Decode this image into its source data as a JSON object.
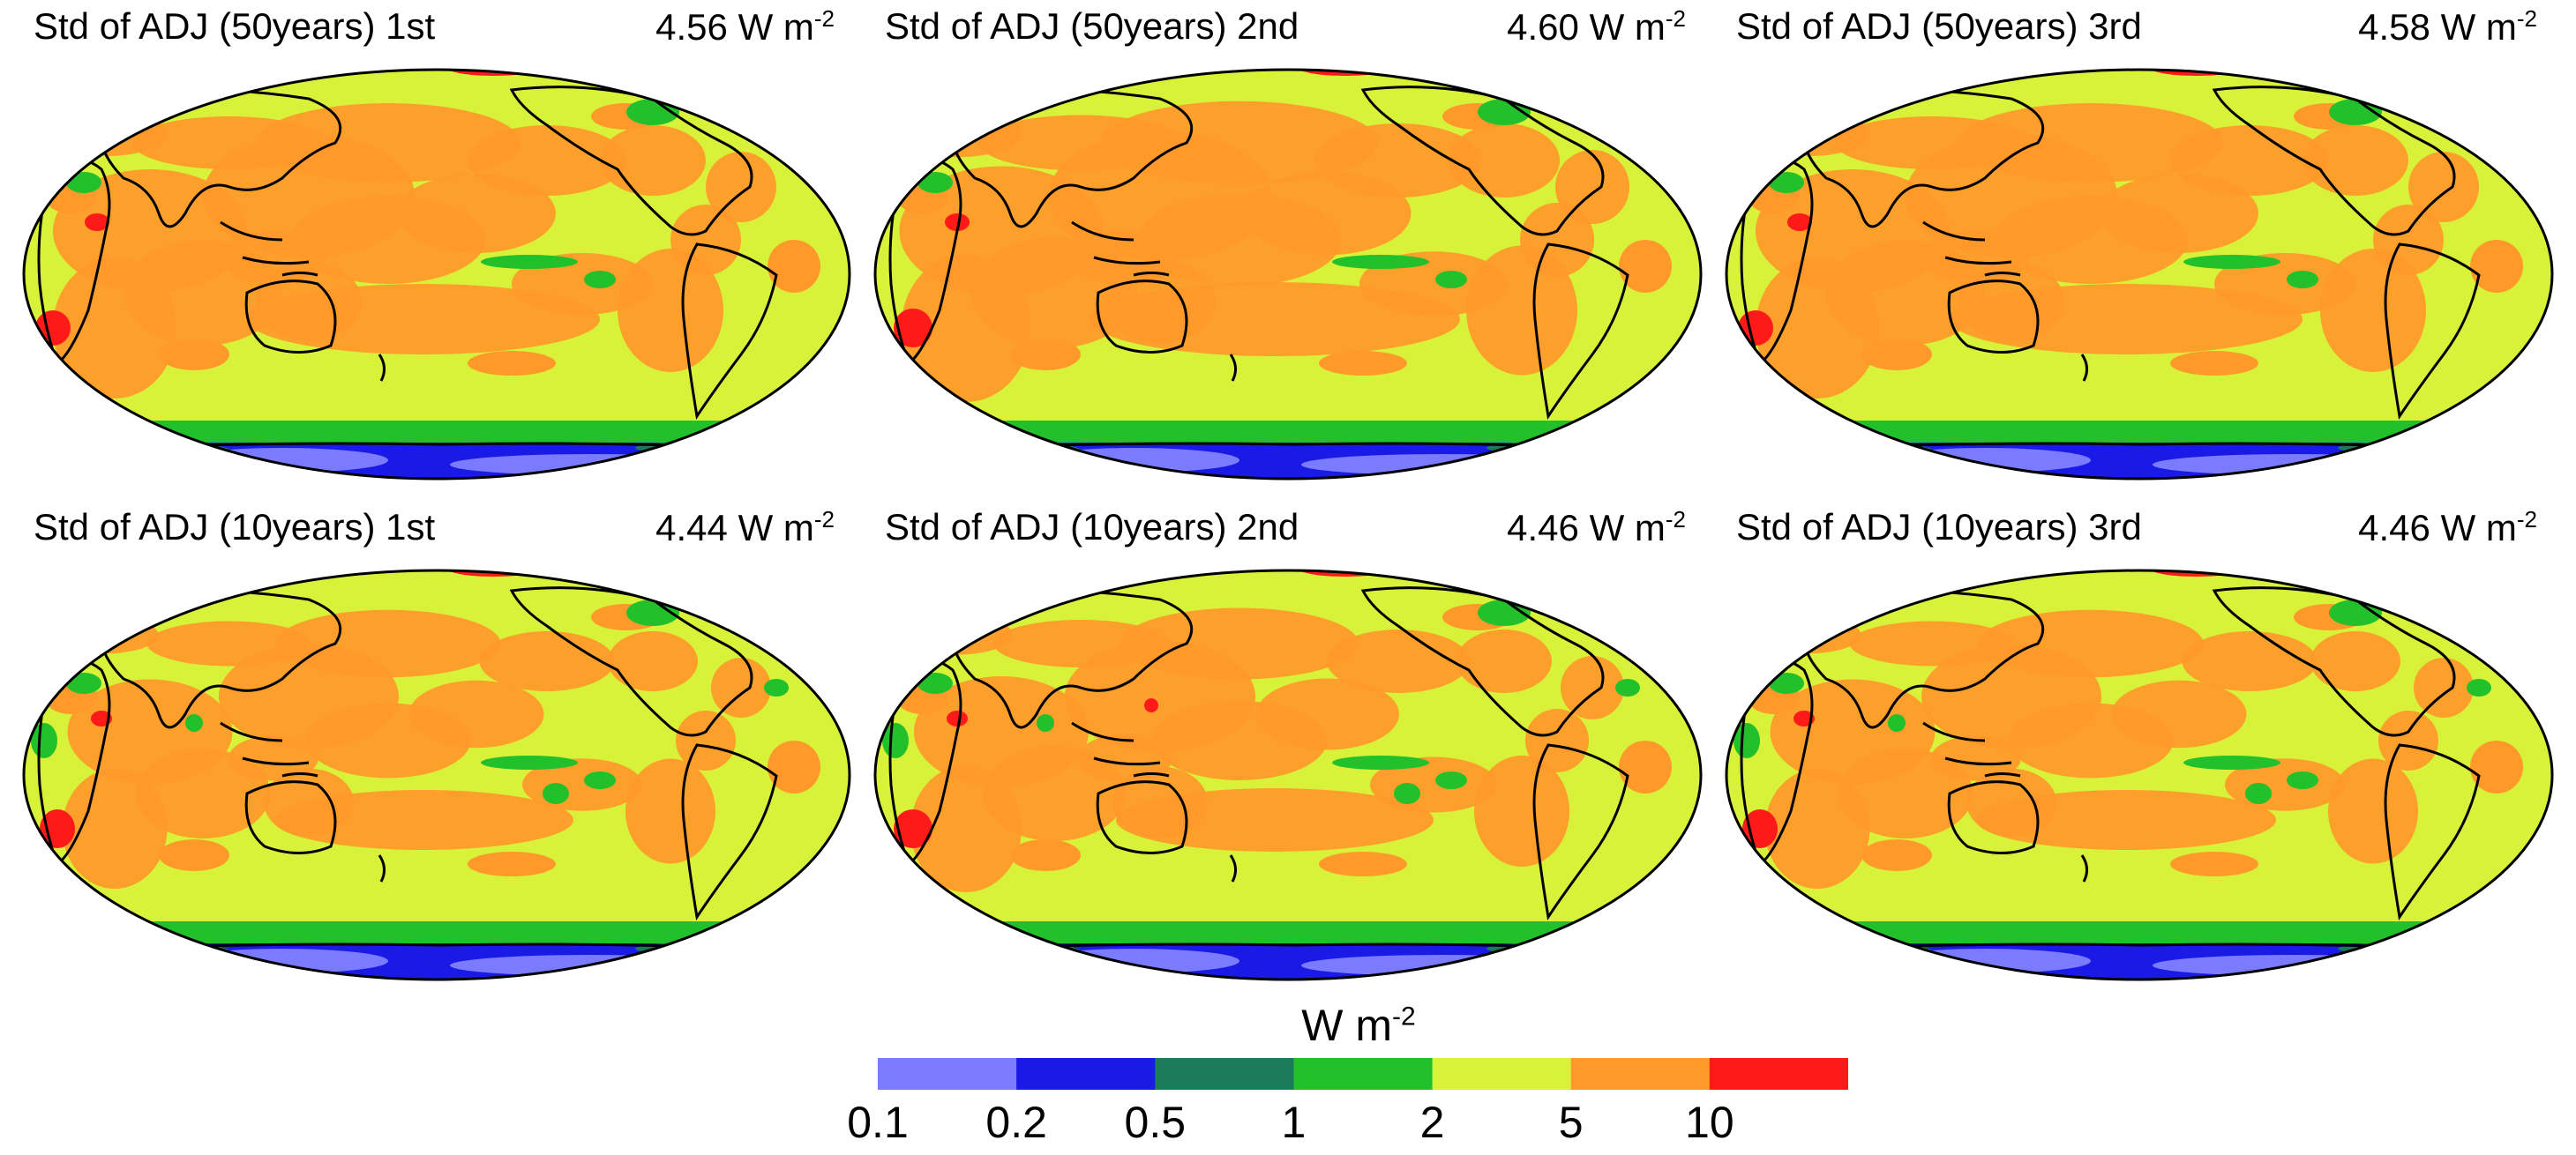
{
  "panels": [
    {
      "title": "Std of  ADJ (50years) 1st",
      "value": "4.56",
      "unit": "W m",
      "unit_exp": "-2"
    },
    {
      "title": "Std of  ADJ (50years) 2nd",
      "value": "4.60",
      "unit": "W m",
      "unit_exp": "-2"
    },
    {
      "title": "Std of  ADJ (50years) 3rd",
      "value": "4.58",
      "unit": "W m",
      "unit_exp": "-2"
    },
    {
      "title": "Std of  ADJ (10years) 1st",
      "value": "4.44",
      "unit": "W m",
      "unit_exp": "-2"
    },
    {
      "title": "Std of  ADJ (10years) 2nd",
      "value": "4.46",
      "unit": "W m",
      "unit_exp": "-2"
    },
    {
      "title": "Std of  ADJ (10years) 3rd",
      "value": "4.46",
      "unit": "W m",
      "unit_exp": "-2"
    }
  ],
  "colorbar": {
    "title": "W m",
    "title_exp": "-2",
    "ticks": [
      "0.1",
      "0.2",
      "0.5",
      "1",
      "2",
      "5",
      "10"
    ],
    "colors": [
      "#7b7bff",
      "#1a1ae6",
      "#1b7a5a",
      "#22c02a",
      "#d8f23a",
      "#ff9a2a",
      "#ff1a1a"
    ]
  },
  "map_colors": {
    "ocean_background": "#d8f23a",
    "high": "#ff9a2a",
    "very_high": "#ff1a1a",
    "moderate": "#22c02a",
    "low": "#1b7a5a",
    "lower": "#1a1ae6",
    "lowest": "#7b7bff",
    "coast": "#000000"
  }
}
